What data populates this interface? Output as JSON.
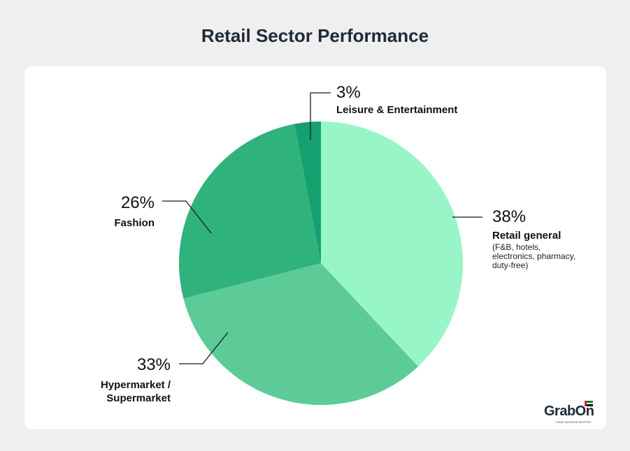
{
  "page": {
    "title": "Retail Sector Performance"
  },
  "chart_data": {
    "type": "pie",
    "title": "Retail Sector Performance",
    "slices": [
      {
        "label": "Retail general",
        "sublabel": [
          "(F&B, hotels,",
          "electronics, pharmacy,",
          "duty-free)"
        ],
        "value": 38,
        "value_label": "38%",
        "color": "#98f5c8"
      },
      {
        "label": "Hypermarket / Supermarket",
        "label_lines": [
          "Hypermarket /",
          "Supermarket"
        ],
        "value": 33,
        "value_label": "33%",
        "color": "#5ccb98"
      },
      {
        "label": "Fashion",
        "value": 26,
        "value_label": "26%",
        "color": "#30b27c"
      },
      {
        "label": "Leisure & Entertainment",
        "value": 3,
        "value_label": "3%",
        "color": "#16a070"
      }
    ]
  },
  "logo": {
    "text": "GrabOn",
    "tagline": "YOUR SAVINGS MATTER",
    "flag_colors": [
      "#e21c21",
      "#00843d",
      "#ffffff",
      "#000000"
    ]
  }
}
